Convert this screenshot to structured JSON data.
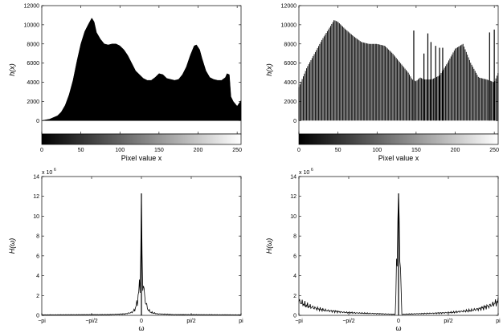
{
  "chart_data": [
    {
      "type": "area",
      "position": "top-left",
      "xlabel": "Pixel value x",
      "ylabel": "h(x)",
      "xlim": [
        0,
        255
      ],
      "ylim": [
        -1400,
        12000
      ],
      "xticks": [
        "0",
        "50",
        "100",
        "150",
        "200",
        "250"
      ],
      "yticks": [
        "0",
        "2000",
        "4000",
        "6000",
        "8000",
        "10000",
        "12000"
      ],
      "grayscale_bar": true,
      "series": [
        {
          "x": [
            0,
            10,
            20,
            25,
            30,
            35,
            40,
            45,
            50,
            55,
            60,
            64,
            67,
            70,
            75,
            80,
            85,
            90,
            95,
            100,
            105,
            110,
            115,
            120,
            125,
            130,
            135,
            140,
            145,
            150,
            155,
            160,
            165,
            170,
            175,
            180,
            185,
            190,
            195,
            198,
            202,
            205,
            210,
            215,
            220,
            225,
            230,
            235,
            237,
            240,
            242,
            245,
            250,
            255
          ],
          "values": [
            0,
            150,
            500,
            900,
            1600,
            2700,
            4200,
            6200,
            8000,
            9300,
            10100,
            10700,
            10300,
            9200,
            8500,
            8000,
            7900,
            8000,
            8000,
            7800,
            7400,
            6800,
            6000,
            5200,
            4800,
            4400,
            4200,
            4200,
            4500,
            4900,
            4800,
            4400,
            4300,
            4200,
            4300,
            4800,
            5600,
            6800,
            7800,
            7900,
            7400,
            6500,
            5200,
            4500,
            4300,
            4200,
            4200,
            4500,
            4900,
            4800,
            2500,
            2000,
            1500,
            2100
          ]
        }
      ]
    },
    {
      "type": "bar",
      "position": "top-right",
      "xlabel": "Pixel value x",
      "ylabel": "h(x)",
      "xlim": [
        0,
        255
      ],
      "ylim": [
        -1400,
        12000
      ],
      "xticks": [
        "0",
        "50",
        "100",
        "150",
        "200",
        "250"
      ],
      "yticks": [
        "0",
        "2000",
        "4000",
        "6000",
        "8000",
        "10000",
        "12000"
      ],
      "grayscale_bar": true,
      "series": [
        {
          "x": [
            0,
            10,
            20,
            30,
            40,
            45,
            50,
            60,
            70,
            80,
            90,
            100,
            110,
            120,
            130,
            140,
            145,
            150,
            155,
            160,
            170,
            180,
            190,
            200,
            210,
            220,
            230,
            240,
            250,
            255
          ],
          "values": [
            3500,
            5500,
            7000,
            8500,
            9800,
            10500,
            10300,
            9500,
            8800,
            8200,
            8000,
            8000,
            7800,
            7000,
            6000,
            5000,
            4300,
            4100,
            4500,
            4300,
            4300,
            4700,
            6000,
            7500,
            8000,
            6000,
            4500,
            4300,
            4000,
            5000
          ]
        }
      ],
      "spikes": [
        {
          "x": 147,
          "value": 9400
        },
        {
          "x": 160,
          "value": 7000
        },
        {
          "x": 165,
          "value": 9100
        },
        {
          "x": 169,
          "value": 8200
        },
        {
          "x": 175,
          "value": 7800
        },
        {
          "x": 180,
          "value": 7600
        },
        {
          "x": 184,
          "value": 7600
        },
        {
          "x": 244,
          "value": 9200
        },
        {
          "x": 250,
          "value": 9500
        }
      ]
    },
    {
      "type": "line",
      "position": "bottom-left",
      "xlabel": "ω",
      "ylabel": "H(ω)",
      "xlim": [
        -3.1416,
        3.1416
      ],
      "ylim": [
        0,
        1.4
      ],
      "y_multiplier": "x 10^6",
      "xticks": [
        "−pi",
        "−pi/2",
        "0",
        "pi/2",
        "pi"
      ],
      "yticks": [
        "0",
        "2",
        "4",
        "6",
        "8",
        "10",
        "12",
        "14"
      ],
      "series": [
        {
          "x": [
            -3.1416,
            -1.0,
            -0.5,
            -0.3,
            -0.2,
            -0.12,
            -0.06,
            -0.03,
            0,
            0.03,
            0.06,
            0.12,
            0.2,
            0.3,
            0.5,
            1.0,
            3.1416
          ],
          "values": [
            0.005,
            0.008,
            0.015,
            0.03,
            0.06,
            0.15,
            0.3,
            0.35,
            1.23,
            0.35,
            0.3,
            0.15,
            0.06,
            0.03,
            0.015,
            0.008,
            0.005
          ]
        }
      ]
    },
    {
      "type": "line",
      "position": "bottom-right",
      "xlabel": "ω",
      "ylabel": "H(ω)",
      "xlim": [
        -3.1416,
        3.1416
      ],
      "ylim": [
        0,
        1.4
      ],
      "y_multiplier": "x 10^6",
      "xticks": [
        "−pi",
        "−pi/2",
        "0",
        "pi/2",
        "pi"
      ],
      "yticks": [
        "0",
        "2",
        "4",
        "6",
        "8",
        "10",
        "12",
        "14"
      ],
      "series": [
        {
          "x": [
            -3.1416,
            -2.9,
            -2.6,
            -2.3,
            -2.0,
            -1.7,
            -1.4,
            -1.0,
            -0.5,
            -0.1,
            0,
            0.1,
            0.5,
            1.0,
            1.4,
            1.7,
            2.0,
            2.3,
            2.6,
            2.9,
            3.1416
          ],
          "values": [
            0.14,
            0.1,
            0.07,
            0.05,
            0.04,
            0.03,
            0.025,
            0.02,
            0.015,
            0.01,
            1.23,
            0.01,
            0.015,
            0.02,
            0.025,
            0.03,
            0.04,
            0.05,
            0.07,
            0.1,
            0.14
          ]
        }
      ]
    }
  ]
}
